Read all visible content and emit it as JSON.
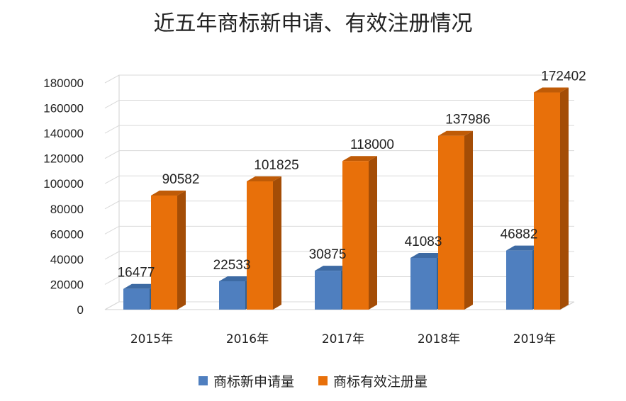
{
  "chart_data": {
    "type": "bar",
    "title": "近五年商标新申请、有效注册情况",
    "categories": [
      "2015年",
      "2016年",
      "2017年",
      "2018年",
      "2019年"
    ],
    "series": [
      {
        "name": "商标新申请量",
        "values": [
          16477,
          22533,
          30875,
          41083,
          46882
        ],
        "color": "#4f7fbf",
        "side_color": "#35608f",
        "top_color": "#3d6aa3"
      },
      {
        "name": "商标有效注册量",
        "values": [
          90582,
          101825,
          118000,
          137986,
          172402
        ],
        "color": "#e8700a",
        "side_color": "#a44d06",
        "top_color": "#bf5b07"
      }
    ],
    "y_ticks": [
      "0",
      "20000",
      "40000",
      "60000",
      "80000",
      "100000",
      "120000",
      "140000",
      "160000",
      "180000"
    ],
    "ylim": [
      0,
      180000
    ],
    "grid": true,
    "legend_position": "bottom"
  }
}
